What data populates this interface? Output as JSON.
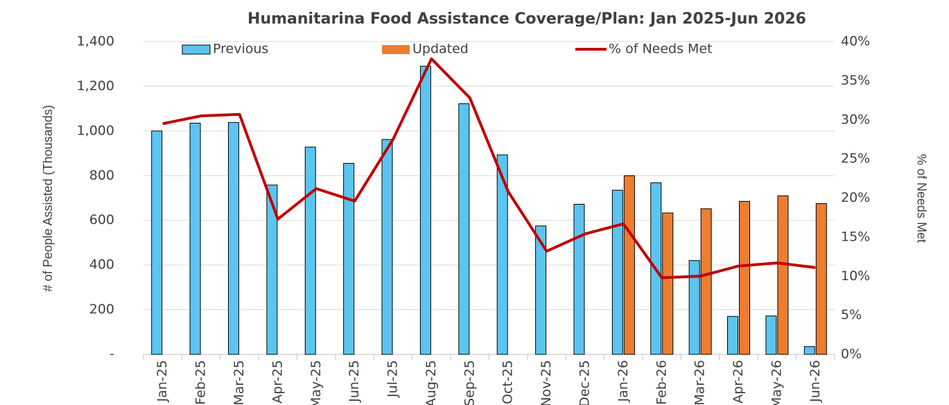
{
  "chart_data": {
    "type": "bar",
    "title": "Humanitarina Food Assistance Coverage/Plan: Jan 2025-Jun 2026",
    "y_label": "# of People Assisted (Thousands)",
    "y2_label": "% of Needs Met",
    "categories": [
      "Jan-25",
      "Feb-25",
      "Mar-25",
      "Apr-25",
      "May-25",
      "Jun-25",
      "Jul-25",
      "Aug-25",
      "Sep-25",
      "Oct-25",
      "Nov-25",
      "Dec-25",
      "Jan-26",
      "Feb-26",
      "Mar-26",
      "Apr-26",
      "May-26",
      "Jun-26"
    ],
    "series": [
      {
        "name": "Previous",
        "color": "#5bc5f0",
        "values": [
          1000,
          1035,
          1038,
          758,
          928,
          855,
          962,
          1290,
          1122,
          893,
          575,
          672,
          735,
          768,
          420,
          170,
          172,
          35
        ]
      },
      {
        "name": "Updated",
        "color": "#ed7d31",
        "values": [
          null,
          null,
          null,
          null,
          null,
          null,
          null,
          null,
          null,
          null,
          null,
          null,
          800,
          633,
          652,
          685,
          710,
          675
        ]
      },
      {
        "name": "% of Needs Met",
        "color": "#c00000",
        "type": "line",
        "axis": "y2",
        "values": [
          29.5,
          30.5,
          30.7,
          17.3,
          21.2,
          19.6,
          27.5,
          37.8,
          32.8,
          20.8,
          13.2,
          15.4,
          16.7,
          9.8,
          10.0,
          11.3,
          11.7,
          11.1
        ]
      }
    ],
    "ylim": [
      0,
      1400
    ],
    "yticks": [
      {
        "value": 0,
        "label": "-"
      },
      200,
      400,
      600,
      800,
      {
        "value": 1000,
        "label": "1,000"
      },
      {
        "value": 1200,
        "label": "1,200"
      },
      {
        "value": 1400,
        "label": "1,400"
      }
    ],
    "y2lim": [
      0,
      40
    ],
    "y2ticks": [
      {
        "value": 0,
        "label": "0%"
      },
      {
        "value": 5,
        "label": "5%"
      },
      {
        "value": 10,
        "label": "10%"
      },
      {
        "value": 15,
        "label": "15%"
      },
      {
        "value": 20,
        "label": "20%"
      },
      {
        "value": 25,
        "label": "25%"
      },
      {
        "value": 30,
        "label": "30%"
      },
      {
        "value": 35,
        "label": "35%"
      },
      {
        "value": 40,
        "label": "40%"
      }
    ],
    "grid": true,
    "legend": "top"
  }
}
